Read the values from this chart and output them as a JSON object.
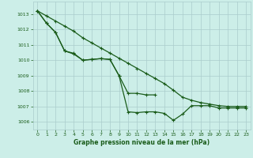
{
  "title": "Graphe pression niveau de la mer (hPa)",
  "bg_color": "#cceee8",
  "grid_color": "#aacccc",
  "line_color": "#1a5c1a",
  "xlim": [
    -0.5,
    23.5
  ],
  "ylim": [
    1005.5,
    1013.8
  ],
  "xticks": [
    0,
    1,
    2,
    3,
    4,
    5,
    6,
    7,
    8,
    9,
    10,
    11,
    12,
    13,
    14,
    15,
    16,
    17,
    18,
    19,
    20,
    21,
    22,
    23
  ],
  "yticks": [
    1006,
    1007,
    1008,
    1009,
    1010,
    1011,
    1012,
    1013
  ],
  "line1_x": [
    0,
    1,
    2,
    3,
    4,
    5,
    6,
    7,
    8,
    9,
    10,
    11,
    12,
    13
  ],
  "line1_y": [
    1013.2,
    1012.4,
    1011.8,
    1010.6,
    1010.45,
    1010.0,
    1010.05,
    1010.1,
    1010.05,
    1009.0,
    1007.85,
    1007.85,
    1007.75,
    1007.75
  ],
  "line2_x": [
    0,
    1,
    2,
    3,
    4,
    5,
    6,
    7,
    8,
    9,
    10,
    11,
    12,
    13,
    14,
    15,
    16,
    17,
    18,
    19,
    20,
    21,
    22,
    23
  ],
  "line2_y": [
    1013.2,
    1012.4,
    1011.8,
    1010.6,
    1010.4,
    1010.0,
    1010.05,
    1010.1,
    1010.05,
    1009.0,
    1006.65,
    1006.6,
    1006.65,
    1006.65,
    1006.55,
    1006.1,
    1006.5,
    1007.05,
    1007.05,
    1007.05,
    1006.9,
    1006.9,
    1006.9,
    1006.9
  ],
  "line3_x": [
    0,
    1,
    2,
    3,
    4,
    5,
    6,
    7,
    8,
    9,
    10,
    11,
    12,
    13,
    14,
    15,
    16,
    17,
    18,
    19,
    20,
    21,
    22,
    23
  ],
  "line3_y": [
    1013.2,
    1012.87,
    1012.54,
    1012.21,
    1011.88,
    1011.45,
    1011.12,
    1010.79,
    1010.46,
    1010.13,
    1009.8,
    1009.47,
    1009.14,
    1008.81,
    1008.48,
    1008.05,
    1007.6,
    1007.4,
    1007.25,
    1007.15,
    1007.05,
    1007.0,
    1007.0,
    1007.0
  ]
}
